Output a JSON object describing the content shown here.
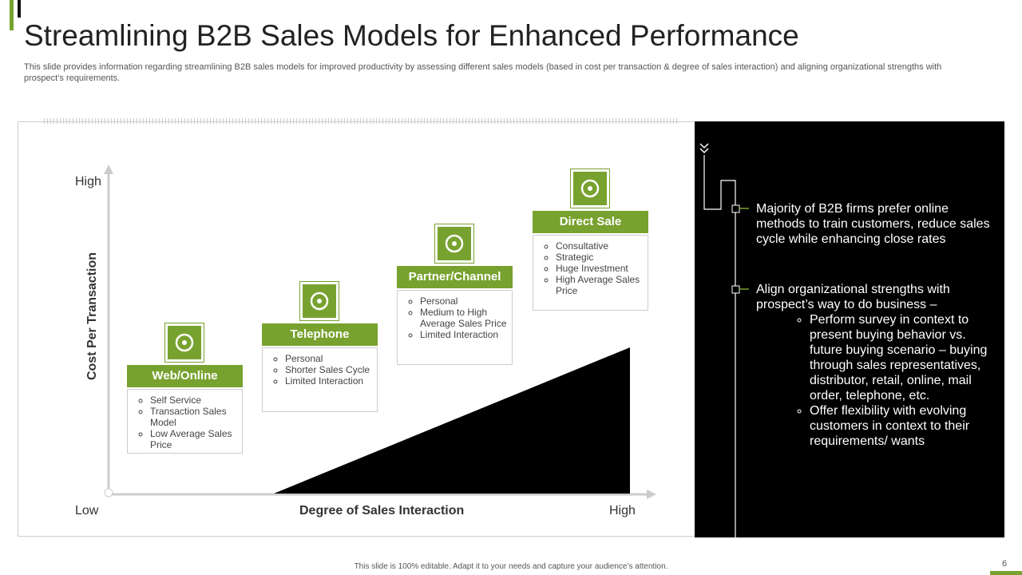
{
  "title": "Streamlining B2B Sales Models for Enhanced Performance",
  "description": "This slide provides information regarding streamlining B2B sales models for improved productivity by assessing different sales models (based in cost per transaction & degree of sales interaction) and aligning organizational strengths with prospect’s requirements.",
  "axes": {
    "y_label": "Cost Per Transaction",
    "y_high": "High",
    "x_low": "Low",
    "x_label": "Degree of Sales Interaction",
    "x_high": "High"
  },
  "models": [
    {
      "name": "Web/Online",
      "points": [
        "Self Service",
        "Transaction Sales Model",
        "Low Average Sales Price"
      ]
    },
    {
      "name": "Telephone",
      "points": [
        "Personal",
        "Shorter Sales Cycle",
        "Limited Interaction"
      ]
    },
    {
      "name": "Partner/Channel",
      "points": [
        "Personal",
        "Medium to High Average Sales Price",
        "Limited Interaction"
      ]
    },
    {
      "name": "Direct Sale",
      "points": [
        "Consultative",
        "Strategic",
        "Huge Investment",
        "High Average Sales Price"
      ]
    }
  ],
  "insights": [
    {
      "text": "Majority of B2B firms prefer online methods to train customers, reduce sales cycle while enhancing close rates"
    },
    {
      "text": "Align organizational strengths with prospect’s way to do business –",
      "subpoints": [
        "Perform survey  in context to present buying behavior vs. future buying scenario – buying through sales representatives, distributor, retail, online, mail order, telephone, etc.",
        "Offer flexibility with evolving customers in context to their requirements/ wants"
      ]
    }
  ],
  "footer": "This slide is 100% editable.  Adapt it to your needs and capture your audience’s attention.",
  "page_number": "6"
}
